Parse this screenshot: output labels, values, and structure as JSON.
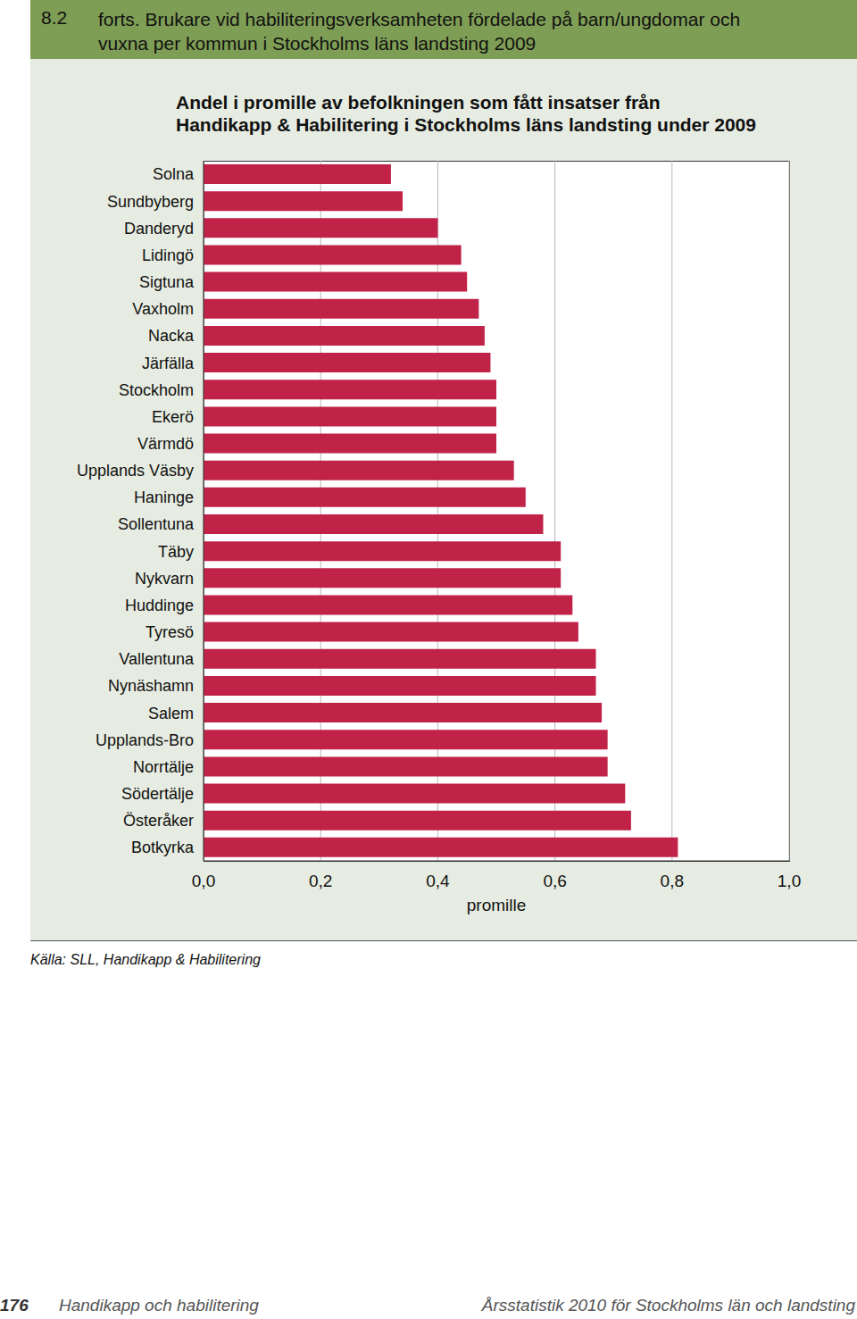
{
  "chart_data": {
    "type": "bar",
    "orientation": "horizontal",
    "title": [
      "Andel i promille av befolkningen som fått insatser från",
      "Handikapp & Habilitering i Stockholms läns landsting under 2009"
    ],
    "categories": [
      "Solna",
      "Sundbyberg",
      "Danderyd",
      "Lidingö",
      "Sigtuna",
      "Vaxholm",
      "Nacka",
      "Järfälla",
      "Stockholm",
      "Ekerö",
      "Värmdö",
      "Upplands Väsby",
      "Haninge",
      "Sollentuna",
      "Täby",
      "Nykvarn",
      "Huddinge",
      "Tyresö",
      "Vallentuna",
      "Nynäshamn",
      "Salem",
      "Upplands-Bro",
      "Norrtälje",
      "Södertälje",
      "Österåker",
      "Botkyrka"
    ],
    "values": [
      0.32,
      0.34,
      0.4,
      0.44,
      0.45,
      0.47,
      0.48,
      0.49,
      0.5,
      0.5,
      0.5,
      0.53,
      0.55,
      0.58,
      0.61,
      0.61,
      0.63,
      0.64,
      0.67,
      0.67,
      0.68,
      0.69,
      0.69,
      0.72,
      0.73,
      0.81
    ],
    "color": "#c02248",
    "xlim": [
      0,
      1
    ],
    "xticks": [
      {
        "value": 0,
        "label": "0,0"
      },
      {
        "value": 0.2,
        "label": "0,2"
      },
      {
        "value": 0.4,
        "label": "0,4"
      },
      {
        "value": 0.6,
        "label": "0,6"
      },
      {
        "value": 0.8,
        "label": "0,8"
      },
      {
        "value": 1,
        "label": "1,0"
      }
    ],
    "xlabel": "promille",
    "grid": true
  },
  "header": {
    "number": "8.2",
    "title": [
      "forts. Brukare vid habiliteringsverksamheten fördelade på barn/ungdomar och",
      "vuxna per kommun i Stockholms läns landsting 2009"
    ]
  },
  "source": "Källa: SLL, Handikapp & Habilitering",
  "footer": {
    "page": "176",
    "section": "Handikapp och habilitering",
    "publication": "Årsstatistik 2010 för Stockholms län och landsting"
  }
}
